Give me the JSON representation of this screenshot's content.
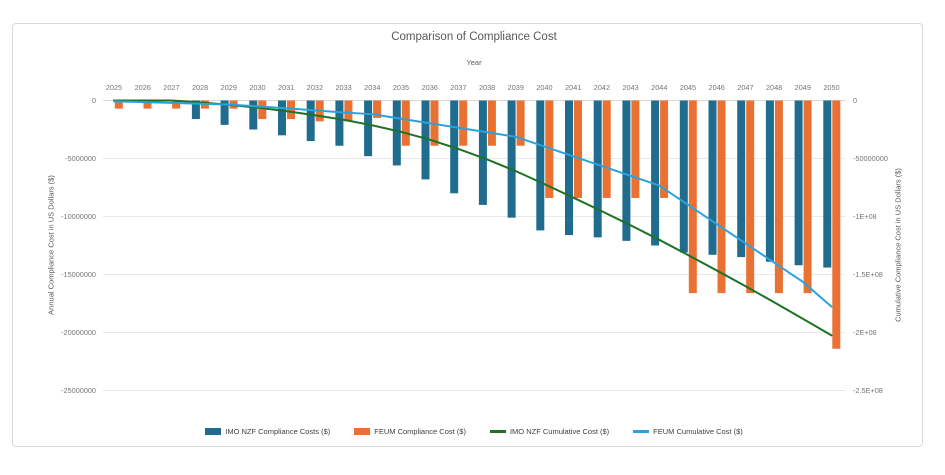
{
  "chart_data": {
    "type": "bar",
    "subtype": "combo-bar-line-dual-axis",
    "title": "Comparison of Compliance Cost",
    "x_axis_title": "Year",
    "left_axis_title": "Annual Compliance Cost in US Dollars ($)",
    "right_axis_title": "Cumulative Compliance Cost in US Dollars ($)",
    "left_axis_ticks": [
      "0",
      "-5000000",
      "-10000000",
      "-15000000",
      "-20000000",
      "-25000000"
    ],
    "right_axis_ticks": [
      "0",
      "-50000000",
      "-1E+08",
      "-1.5E+08",
      "-2E+08",
      "-2.5E+08"
    ],
    "left_axis_range": [
      0,
      -25000000
    ],
    "right_axis_range": [
      0,
      -250000000
    ],
    "legend_position": "bottom",
    "gridlines": "horizontal",
    "grid_color": "#e9e9e9",
    "axis_line_color": "#d9d9d9",
    "tick_color": "#757575",
    "text_color": "#595959",
    "categories": [
      2025,
      2026,
      2027,
      2028,
      2029,
      2030,
      2031,
      2032,
      2033,
      2034,
      2035,
      2036,
      2037,
      2038,
      2039,
      2040,
      2041,
      2042,
      2043,
      2044,
      2045,
      2046,
      2047,
      2048,
      2049,
      2050
    ],
    "series": [
      {
        "name": "IMO NZF Compliance Costs ($)",
        "type": "bar",
        "axis": "left",
        "color": "#1f6c8e",
        "values": [
          0,
          0,
          0,
          -1600000,
          -2100000,
          -2500000,
          -3000000,
          -3500000,
          -3900000,
          -4800000,
          -5600000,
          -6800000,
          -8000000,
          -9000000,
          -10100000,
          -11200000,
          -11600000,
          -11800000,
          -12100000,
          -12500000,
          -13100000,
          -13300000,
          -13500000,
          -13900000,
          -14200000,
          -14400000
        ]
      },
      {
        "name": "FEUM Compliance Cost ($)",
        "type": "bar",
        "axis": "left",
        "color": "#e97132",
        "values": [
          -700000,
          -700000,
          -700000,
          -700000,
          -700000,
          -1600000,
          -1600000,
          -1800000,
          -1800000,
          -1500000,
          -3900000,
          -3900000,
          -3900000,
          -3900000,
          -3900000,
          -8400000,
          -8400000,
          -8400000,
          -8400000,
          -8400000,
          -16600000,
          -16600000,
          -16600000,
          -16600000,
          -16600000,
          -21400000
        ]
      },
      {
        "name": "IMO NZF Cumulative Cost ($)",
        "type": "line",
        "axis": "right",
        "color": "#1e7228",
        "values": [
          0,
          0,
          0,
          -1600000,
          -3700000,
          -6200000,
          -9200000,
          -12700000,
          -16600000,
          -21400000,
          -27000000,
          -33800000,
          -41800000,
          -50800000,
          -60900000,
          -72100000,
          -83700000,
          -95500000,
          -107600000,
          -120100000,
          -133200000,
          -146500000,
          -160000000,
          -173900000,
          -188100000,
          -202500000
        ]
      },
      {
        "name": "FEUM Cumulative Cost ($)",
        "type": "line",
        "axis": "right",
        "color": "#2aa3dc",
        "values": [
          -700000,
          -1400000,
          -2100000,
          -2800000,
          -3500000,
          -5100000,
          -6700000,
          -8500000,
          -10300000,
          -11800000,
          -15700000,
          -19600000,
          -23500000,
          -27400000,
          -31300000,
          -39700000,
          -48100000,
          -56500000,
          -64900000,
          -73300000,
          -89900000,
          -106500000,
          -123100000,
          -139700000,
          -156300000,
          -177700000
        ]
      }
    ]
  }
}
